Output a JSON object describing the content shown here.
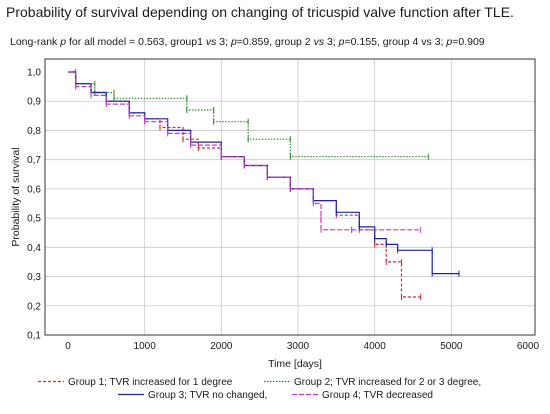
{
  "title": "Probability of survival depending on changing of tricuspid valve function after TLE.",
  "subtitle": {
    "t1": "Long-rank ",
    "p1": "p",
    "t2": " for all model = 0.563, group1 ",
    "vs1": "vs",
    "t3": " 3; ",
    "p2": "p",
    "t4": "=0.859, group 2 ",
    "vs2": "vs",
    "t5": " 3; ",
    "p3": "p",
    "t6": "=0.155, group 4 vs 3; ",
    "p4": "p",
    "t7": "=0.909"
  },
  "chart_data": {
    "type": "line",
    "title": "",
    "xlabel": "Time [days]",
    "ylabel": "Probability of survival",
    "xlim": [
      0,
      6000
    ],
    "ylim": [
      0.1,
      1.0
    ],
    "x_ticks": [
      "0",
      "1000",
      "2000",
      "3000",
      "4000",
      "5000",
      "6000"
    ],
    "y_ticks": [
      "1,0",
      "0,9",
      "0,8",
      "0,7",
      "0,6",
      "0,5",
      "0,4",
      "0,3",
      "0,2",
      "0,1"
    ],
    "grid": true,
    "legend_position": "bottom",
    "series": [
      {
        "name": "Group 1; TVR increased for 1 degree",
        "color": "#d42a2a",
        "dash": "3,2",
        "x": [
          0,
          100,
          300,
          500,
          800,
          1000,
          1200,
          1500,
          1700,
          2000,
          2300,
          2600,
          2900,
          3200,
          3500,
          3800,
          4000,
          4150,
          4150,
          4350,
          4350,
          4600
        ],
        "y": [
          1.0,
          0.96,
          0.93,
          0.9,
          0.86,
          0.84,
          0.81,
          0.77,
          0.74,
          0.71,
          0.68,
          0.64,
          0.6,
          0.56,
          0.51,
          0.46,
          0.41,
          0.41,
          0.35,
          0.35,
          0.23,
          0.23
        ]
      },
      {
        "name": "Group 2; TVR increased for 2 or 3 degree,",
        "color": "#2a8a2a",
        "dash": "1.5,1.5",
        "x": [
          0,
          100,
          100,
          350,
          350,
          600,
          600,
          1550,
          1550,
          1900,
          1900,
          2350,
          2350,
          2900,
          2900,
          4700
        ],
        "y": [
          1.0,
          1.0,
          0.96,
          0.96,
          0.93,
          0.93,
          0.91,
          0.91,
          0.87,
          0.87,
          0.83,
          0.83,
          0.77,
          0.77,
          0.71,
          0.71
        ]
      },
      {
        "name": "Group 3; TVR no changed,",
        "color": "#1c22a6",
        "dash": "",
        "x": [
          0,
          100,
          300,
          500,
          800,
          1000,
          1300,
          1600,
          2000,
          2300,
          2600,
          2900,
          3200,
          3500,
          3800,
          4000,
          4150,
          4300,
          4750,
          4750,
          5100
        ],
        "y": [
          1.0,
          0.96,
          0.93,
          0.9,
          0.86,
          0.84,
          0.8,
          0.76,
          0.71,
          0.68,
          0.64,
          0.6,
          0.56,
          0.52,
          0.47,
          0.43,
          0.41,
          0.39,
          0.39,
          0.31,
          0.31
        ]
      },
      {
        "name": "Group 4; TVR decreased",
        "color": "#c43ac4",
        "dash": "5,2",
        "x": [
          0,
          100,
          300,
          500,
          800,
          1000,
          1300,
          1600,
          2000,
          2300,
          2600,
          2900,
          3200,
          3300,
          3300,
          3700,
          3700,
          4600
        ],
        "y": [
          1.0,
          0.95,
          0.92,
          0.89,
          0.85,
          0.83,
          0.79,
          0.75,
          0.71,
          0.68,
          0.64,
          0.6,
          0.55,
          0.5,
          0.46,
          0.46,
          0.46,
          0.46
        ]
      }
    ]
  }
}
